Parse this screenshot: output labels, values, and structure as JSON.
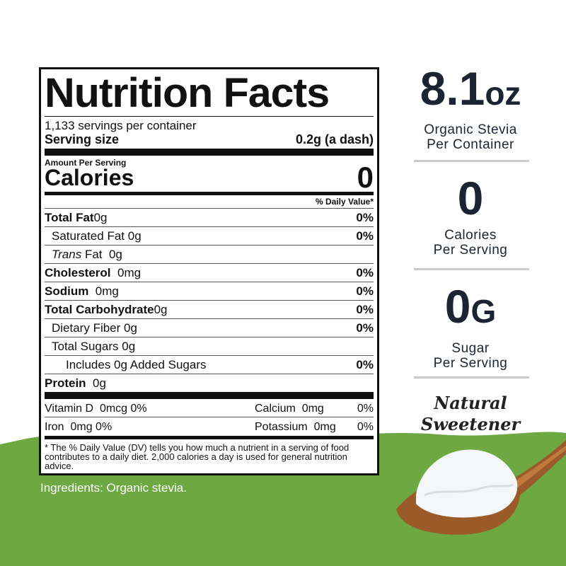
{
  "label": {
    "title": "Nutrition Facts",
    "servings": "1,133 servings per container",
    "serving_size_label": "Serving size",
    "serving_size": "0.2g (a dash)",
    "amount_per_serving": "Amount Per Serving",
    "calories_label": "Calories",
    "calories": "0",
    "daily_value_header": "% Daily Value*",
    "nutrients": [
      {
        "name": "Total Fat",
        "amount": "0g",
        "dv": "0%"
      },
      {
        "name": "Saturated Fat",
        "amount": "0g",
        "dv": "0%"
      },
      {
        "name_italic": "Trans",
        "name": "Fat",
        "amount": "0g"
      },
      {
        "name": "Cholesterol",
        "amount": "0mg",
        "dv": "0%"
      },
      {
        "name": "Sodium",
        "amount": "0mg",
        "dv": "0%"
      },
      {
        "name": "Total Carbohydrate",
        "amount": "0g",
        "dv": "0%"
      },
      {
        "name": "Dietary Fiber",
        "amount": "0g",
        "dv": "0%"
      },
      {
        "name": "Total Sugars",
        "amount": "0g"
      },
      {
        "name": "Includes 0g Added Sugars",
        "dv": "0%"
      },
      {
        "name": "Protein",
        "amount": "0g"
      }
    ],
    "micros": [
      {
        "name": "Vitamin D",
        "amount": "0mcg",
        "dv": "0%"
      },
      {
        "name": "Calcium",
        "amount": "0mg",
        "dv": "0%"
      },
      {
        "name": "Iron",
        "amount": "0mg",
        "dv": "0%"
      },
      {
        "name": "Potassium",
        "amount": "0mg",
        "dv": "0%"
      }
    ],
    "footnote": "* The % Daily Value (DV) tells you how much a nutrient in a serving of food contributes to a daily diet. 2,000 calories a day is used for general nutrition advice."
  },
  "ingredients": "Ingredients: Organic stevia.",
  "highlights": [
    {
      "value": "8.1",
      "unit": "oz",
      "caption": [
        "Organic Stevia",
        "Per Container"
      ]
    },
    {
      "value": "0",
      "caption": [
        "Calories",
        "Per Serving"
      ]
    },
    {
      "value": "0",
      "unit": "G",
      "caption": [
        "Sugar",
        "Per Serving"
      ]
    }
  ],
  "badge": [
    "Natural",
    "Sweetener"
  ]
}
